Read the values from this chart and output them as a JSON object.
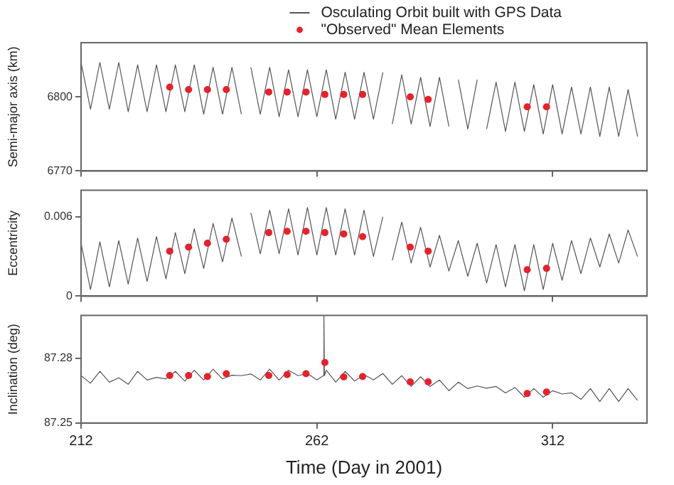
{
  "chart_data": [
    {
      "type": "line",
      "ylabel": "Semi-major axis (km)",
      "xlim": [
        212,
        332
      ],
      "xticks": [
        212,
        262,
        312
      ],
      "ylim": [
        6770,
        6822
      ],
      "yticks": [
        6770,
        6800
      ],
      "tick_labels": "y",
      "legend": "top right",
      "grid": false,
      "series": [
        {
          "name": "Osculating Orbit built with GPS Data",
          "color": "#555555",
          "marker": "none",
          "x": [
            212,
            214,
            216,
            218,
            220,
            222,
            224,
            226,
            228,
            230,
            232,
            234,
            236,
            238,
            240,
            242,
            244,
            246,
            247,
            248,
            250,
            252,
            254,
            256,
            258,
            260,
            262,
            264,
            266,
            268,
            270,
            272,
            274,
            276,
            277,
            278,
            280,
            282,
            284,
            286,
            288,
            290,
            291,
            292,
            294,
            296,
            297,
            298,
            300,
            302,
            304,
            306,
            308,
            310,
            312,
            314,
            316,
            318,
            320,
            322,
            324,
            326,
            328,
            330
          ],
          "values": [
            6814,
            6795,
            6814,
            6795,
            6814,
            6794,
            6813,
            6794,
            6813,
            6794,
            6813,
            6794,
            6813,
            6793,
            6812,
            6793,
            6812,
            6793,
            null,
            6812,
            6793,
            6812,
            6792,
            6811,
            6792,
            6811,
            6792,
            6811,
            6791,
            6810,
            6791,
            6810,
            6791,
            6810,
            null,
            6789,
            6809,
            6789,
            6808,
            6788,
            6808,
            6788,
            null,
            6807,
            6787,
            6807,
            null,
            6787,
            6806,
            6786,
            6806,
            6786,
            6805,
            6785,
            6805,
            6785,
            6804,
            6785,
            6804,
            6784,
            6804,
            6784,
            6803,
            6784
          ]
        },
        {
          "name": "\"Observed\" Mean Elements",
          "type": "scatter",
          "color": "#e8202a",
          "marker": "circle",
          "x": [
            230.8,
            234.8,
            238.8,
            242.8,
            251.8,
            255.7,
            259.7,
            263.7,
            267.7,
            271.7,
            281.8,
            285.6,
            306.6,
            310.7
          ],
          "values": [
            6804,
            6803,
            6803,
            6803,
            6802,
            6802,
            6802,
            6801,
            6801,
            6801,
            6800,
            6799,
            6796,
            6796
          ]
        }
      ]
    },
    {
      "type": "line",
      "ylabel": "Eccentricity",
      "xlim": [
        212,
        332
      ],
      "xticks": [
        212,
        262,
        312
      ],
      "ylim": [
        0,
        0.008
      ],
      "yticks": [
        0,
        0.006
      ],
      "tick_labels": "y",
      "legend": false,
      "grid": false,
      "series": [
        {
          "color": "#555555",
          "marker": "none",
          "x": [
            212,
            214,
            216,
            218,
            220,
            222,
            224,
            226,
            228,
            230,
            232,
            234,
            236,
            238,
            240,
            242,
            244,
            246,
            247,
            248,
            250,
            252,
            254,
            256,
            258,
            260,
            262,
            264,
            266,
            268,
            270,
            272,
            274,
            276,
            277,
            278,
            280,
            282,
            284,
            286,
            288,
            290,
            292,
            294,
            296,
            298,
            300,
            302,
            304,
            306,
            308,
            310,
            312,
            314,
            316,
            318,
            320,
            322,
            324,
            326,
            328,
            330
          ],
          "values": [
            0.004,
            0.0005,
            0.0041,
            0.0007,
            0.0042,
            0.0009,
            0.0044,
            0.0011,
            0.0045,
            0.0013,
            0.0048,
            0.0017,
            0.0051,
            0.0021,
            0.0055,
            0.0026,
            0.0059,
            0.003,
            null,
            0.0063,
            0.0032,
            0.0065,
            0.0032,
            0.0066,
            0.0031,
            0.0067,
            0.0031,
            0.0067,
            0.0031,
            0.0066,
            0.0031,
            0.0065,
            0.003,
            0.006,
            null,
            0.0027,
            0.0056,
            0.0025,
            0.0052,
            0.0022,
            0.0046,
            0.0019,
            0.0042,
            0.0015,
            0.004,
            0.001,
            0.0039,
            0.0007,
            0.0039,
            0.0004,
            0.0039,
            0.0005,
            0.004,
            0.0012,
            0.0042,
            0.0017,
            0.0044,
            0.0022,
            0.0047,
            0.0025,
            0.005,
            0.003
          ]
        },
        {
          "type": "scatter",
          "color": "#e8202a",
          "marker": "circle",
          "x": [
            230.8,
            234.8,
            238.8,
            242.8,
            251.8,
            255.7,
            259.7,
            263.7,
            267.7,
            271.7,
            281.8,
            285.6,
            306.6,
            310.7
          ],
          "values": [
            0.0034,
            0.0037,
            0.004,
            0.0043,
            0.0048,
            0.0049,
            0.0049,
            0.0048,
            0.0047,
            0.0045,
            0.0037,
            0.0034,
            0.002,
            0.0021
          ]
        }
      ]
    },
    {
      "type": "line",
      "xlabel": "Time (Day in 2001)",
      "ylabel": "Inclination (deg)",
      "xlim": [
        212,
        332
      ],
      "xticks": [
        212,
        262,
        312
      ],
      "ylim": [
        87.25,
        87.3
      ],
      "yticks": [
        87.25,
        87.28
      ],
      "legend": false,
      "grid": false,
      "series": [
        {
          "color": "#555555",
          "marker": "none",
          "x": [
            212,
            214,
            216,
            218,
            220,
            222,
            224,
            226,
            228,
            230,
            232,
            234,
            236,
            238,
            240,
            242,
            244,
            246,
            248,
            250,
            252,
            254,
            256,
            258,
            260,
            262,
            263.4,
            263.5,
            263.6,
            264,
            266,
            268,
            270,
            272,
            274,
            276,
            278,
            280,
            282,
            284,
            286,
            288,
            290,
            292,
            294,
            296,
            298,
            300,
            302,
            304,
            306,
            308,
            310,
            312,
            314,
            316,
            318,
            320,
            322,
            324,
            326,
            328,
            330
          ],
          "values": [
            87.272,
            87.2685,
            87.274,
            87.269,
            87.271,
            87.268,
            87.274,
            87.27,
            87.2712,
            87.2705,
            87.274,
            87.2695,
            87.2745,
            87.27,
            87.275,
            87.2705,
            87.2722,
            87.272,
            87.2728,
            87.27,
            87.275,
            87.27,
            87.2745,
            87.272,
            87.273,
            87.27,
            87.272,
            87.3,
            87.272,
            87.2745,
            87.269,
            87.274,
            87.2695,
            87.2725,
            87.27,
            87.273,
            87.268,
            87.272,
            87.267,
            87.2715,
            87.267,
            87.27,
            87.265,
            87.269,
            87.266,
            87.2672,
            87.2662,
            87.267,
            87.264,
            87.2665,
            87.262,
            87.266,
            87.262,
            87.265,
            87.2635,
            87.264,
            87.261,
            87.266,
            87.26,
            87.266,
            87.26,
            87.266,
            87.2605
          ]
        },
        {
          "type": "scatter",
          "color": "#e8202a",
          "marker": "circle",
          "x": [
            230.8,
            234.8,
            238.8,
            242.8,
            251.8,
            255.7,
            259.7,
            263.7,
            267.7,
            271.7,
            281.8,
            285.6,
            306.6,
            310.7
          ],
          "values": [
            87.2721,
            87.2721,
            87.2716,
            87.2729,
            87.2721,
            87.2725,
            87.2729,
            87.2781,
            87.2714,
            87.2716,
            87.2691,
            87.2691,
            87.2637,
            87.2644
          ]
        }
      ]
    }
  ]
}
